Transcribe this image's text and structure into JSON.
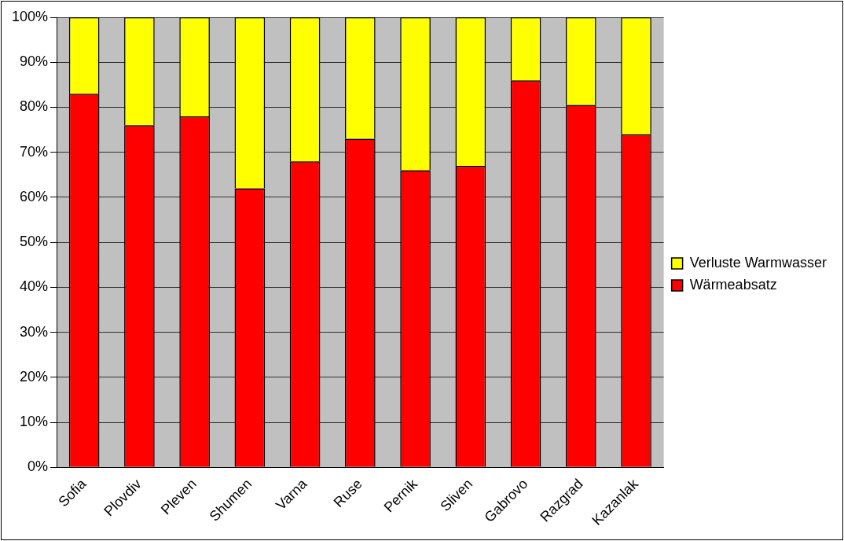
{
  "chart_data": {
    "type": "bar",
    "stacked": true,
    "categories": [
      "Sofia",
      "Plovdiv",
      "Pleven",
      "Shumen",
      "Varna",
      "Ruse",
      "Pernik",
      "Sliven",
      "Gabrovo",
      "Razgrad",
      "Kazanlak"
    ],
    "series": [
      {
        "name": "Wärmeabsatz",
        "color": "#ff0000",
        "values": [
          83,
          76,
          78,
          62,
          68,
          73,
          66,
          67,
          86,
          80.5,
          74
        ]
      },
      {
        "name": "Verluste Warmwasser",
        "color": "#ffff00",
        "values": [
          17,
          24,
          22,
          38,
          32,
          27,
          34,
          33,
          14,
          19.5,
          26
        ]
      }
    ],
    "ylim": [
      0,
      100
    ],
    "yticks": [
      {
        "value": 0,
        "label": "0%"
      },
      {
        "value": 10,
        "label": "10%"
      },
      {
        "value": 20,
        "label": "20%"
      },
      {
        "value": 30,
        "label": "30%"
      },
      {
        "value": 40,
        "label": "40%"
      },
      {
        "value": 50,
        "label": "50%"
      },
      {
        "value": 60,
        "label": "60%"
      },
      {
        "value": 70,
        "label": "70%"
      },
      {
        "value": 80,
        "label": "80%"
      },
      {
        "value": 90,
        "label": "90%"
      },
      {
        "value": 100,
        "label": "100%"
      }
    ],
    "grid": "y",
    "legend": "right"
  }
}
